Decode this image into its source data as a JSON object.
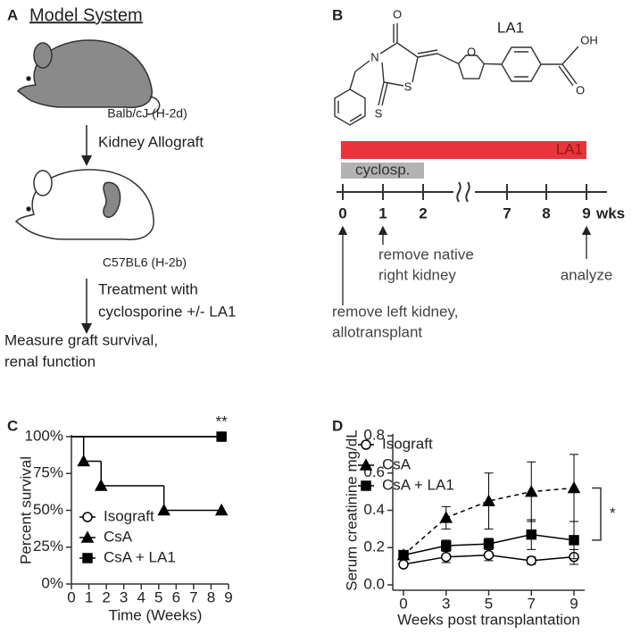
{
  "panel_a": {
    "letter": "A",
    "title": "Model System",
    "donor": "Balb/cJ (H-2d)",
    "step1": "Kidney Allograft",
    "recipient": "C57BL6 (H-2b)",
    "step2": [
      "Treatment with",
      "cyclosporine +/- LA1"
    ],
    "outcome": [
      "Measure graft survival,",
      "renal function"
    ]
  },
  "panel_b": {
    "letter": "B",
    "compound": "LA1",
    "atoms": [
      "O",
      "N",
      "S",
      "S",
      "O",
      "OH",
      "O"
    ],
    "bars": [
      "LA1",
      "cyclosp."
    ],
    "timeline": [
      "0",
      "1",
      "2",
      "7",
      "8",
      "9"
    ],
    "unit": "wks",
    "events": [
      [
        "remove native",
        "right kidney"
      ],
      [
        "remove left kidney,",
        "allotransplant"
      ],
      [
        "analyze"
      ]
    ]
  },
  "chart_data": [
    {
      "type": "line",
      "letter": "C",
      "step": true,
      "annotation": "**",
      "xlabel": "Time (Weeks)",
      "ylabel": "Percent survival",
      "xlim": [
        0,
        9
      ],
      "xticks": [
        0,
        1,
        2,
        3,
        4,
        5,
        6,
        7,
        8,
        9
      ],
      "ylim": [
        0,
        100
      ],
      "yticks": [
        {
          "value": 0,
          "label": "0%"
        },
        {
          "value": 25,
          "label": "25%"
        },
        {
          "value": 50,
          "label": "50%"
        },
        {
          "value": 75,
          "label": "75%"
        },
        {
          "value": 100,
          "label": "100%"
        }
      ],
      "legend": "lower left",
      "series": [
        {
          "name": "Isograft",
          "color": "#000000",
          "marker": "circle-open",
          "x": [
            0,
            8.6
          ],
          "values": [
            100,
            100
          ]
        },
        {
          "name": "CsA",
          "color": "#000000",
          "marker": "triangle",
          "x": [
            0,
            0.7,
            1.7,
            5.3,
            8.6
          ],
          "values": [
            100,
            83.3,
            66.7,
            50,
            50
          ]
        },
        {
          "name": "CsA + LA1",
          "color": "#000000",
          "marker": "square",
          "x": [
            0,
            8.6
          ],
          "values": [
            100,
            100
          ]
        }
      ]
    },
    {
      "type": "line",
      "letter": "D",
      "annotation": "*",
      "xlabel": "Weeks post transplantation",
      "ylabel": "Serum creatinine mg/dL",
      "categories": [
        "0",
        "3",
        "5",
        "7",
        "9"
      ],
      "ylim": [
        0,
        0.8
      ],
      "yticks": [
        {
          "value": 0,
          "label": "0.0"
        },
        0.2,
        0.4,
        0.6,
        0.8
      ],
      "legend": "upper left",
      "series": [
        {
          "name": "Isograft",
          "color": "#000000",
          "marker": "circle-open",
          "dash": false,
          "values": [
            0.11,
            0.15,
            0.16,
            0.13,
            0.15
          ],
          "errors": [
            0.01,
            0.03,
            0.03,
            0.02,
            0.04
          ]
        },
        {
          "name": "CsA",
          "color": "#000000",
          "marker": "triangle",
          "dash": true,
          "values": [
            0.16,
            0.36,
            0.45,
            0.5,
            0.52
          ],
          "errors": [
            0.02,
            0.06,
            0.15,
            0.16,
            0.18
          ]
        },
        {
          "name": "CsA + LA1",
          "color": "#000000",
          "marker": "square",
          "dash": false,
          "values": [
            0.16,
            0.21,
            0.22,
            0.27,
            0.24
          ],
          "errors": [
            0.02,
            0.03,
            0.03,
            0.08,
            0.1
          ]
        }
      ]
    }
  ]
}
